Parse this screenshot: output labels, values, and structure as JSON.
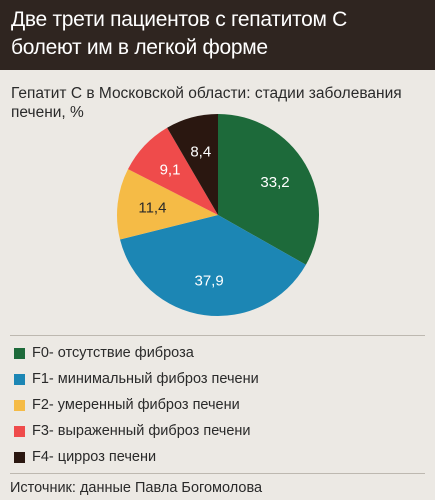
{
  "header": {
    "title_line1": "Две трети пациентов с гепатитом С",
    "title_line2": "болеют им в легкой форме"
  },
  "subtitle": "Гепатит С в Московской области: стадии заболевания печени, %",
  "chart_data": {
    "type": "pie",
    "title": "Две трети пациентов с гепатитом С болеют им в легкой форме",
    "subtitle": "Гепатит С в Московской области: стадии заболевания печени, %",
    "categories": [
      "F0",
      "F1",
      "F2",
      "F3",
      "F4"
    ],
    "values": [
      33.2,
      37.9,
      11.4,
      9.1,
      8.4
    ],
    "value_labels": [
      "33,2",
      "37,9",
      "11,4",
      "9,1",
      "8,4"
    ],
    "colors": [
      "#1d6a3a",
      "#1c86b4",
      "#f5bb46",
      "#ef4b4b",
      "#2a1710"
    ],
    "label_colors": [
      "#ffffff",
      "#ffffff",
      "#2a2a2a",
      "#ffffff",
      "#ffffff"
    ],
    "start_angle_deg": 0,
    "direction": "clockwise",
    "legend_position": "bottom"
  },
  "legend": [
    {
      "code": "F0",
      "text": "F0- отсутствие фиброза",
      "color": "#1d6a3a"
    },
    {
      "code": "F1",
      "text": "F1- минимальный фиброз печени",
      "color": "#1c86b4"
    },
    {
      "code": "F2",
      "text": "F2- умеренный фиброз печени",
      "color": "#f5bb46"
    },
    {
      "code": "F3",
      "text": "F3- выраженный фиброз печени",
      "color": "#ef4b4b"
    },
    {
      "code": "F4",
      "text": "F4- цирроз печени",
      "color": "#2a1710"
    }
  ],
  "source": "Источник: данные Павла Богомолова"
}
